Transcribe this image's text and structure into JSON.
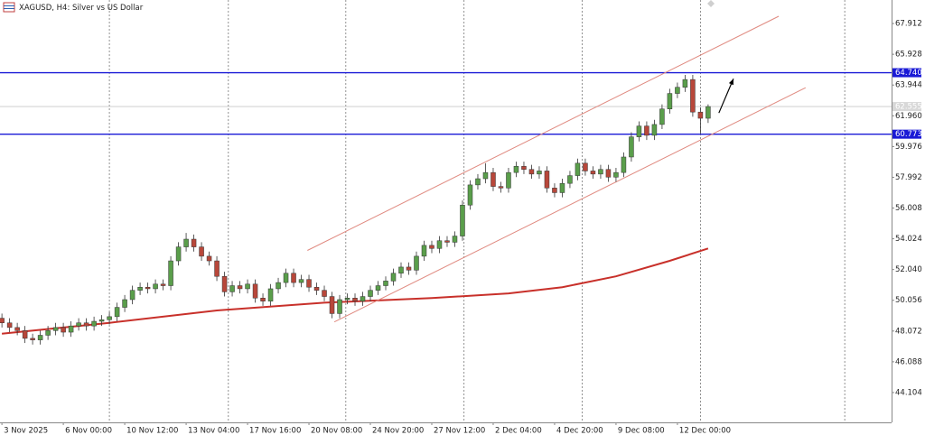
{
  "chart_data": {
    "type": "candlestick",
    "title": "XAGUSD, H4: Silver vs US Dollar",
    "x": [
      0,
      1,
      2,
      3,
      4,
      5,
      6,
      7,
      8,
      9,
      10,
      11,
      12,
      13,
      14,
      15,
      16,
      17,
      18,
      19,
      20,
      21,
      22,
      23,
      24,
      25,
      26,
      27,
      28,
      29,
      30,
      31,
      32,
      33,
      34,
      35,
      36,
      37,
      38,
      39,
      40,
      41,
      42,
      43,
      44,
      45,
      46,
      47,
      48,
      49,
      50,
      51,
      52,
      53,
      54,
      55,
      56,
      57,
      58,
      59,
      60,
      61,
      62,
      63,
      64,
      65,
      66,
      67,
      68,
      69,
      70,
      71,
      72,
      73,
      74,
      75,
      76,
      77,
      78,
      79,
      80,
      81,
      82,
      83,
      84,
      85,
      86,
      87,
      88,
      89,
      90,
      91,
      92
    ],
    "open": [
      48.9,
      48.6,
      48.3,
      48.1,
      47.6,
      47.5,
      47.8,
      48.1,
      48.3,
      48.0,
      48.4,
      48.6,
      48.4,
      48.7,
      48.8,
      49.0,
      49.6,
      50.1,
      50.7,
      50.9,
      50.8,
      51.1,
      51.0,
      52.6,
      53.5,
      54.0,
      53.5,
      52.9,
      52.6,
      51.6,
      50.6,
      51.0,
      50.8,
      51.1,
      50.2,
      50.0,
      50.8,
      51.2,
      51.8,
      51.2,
      51.4,
      50.9,
      50.7,
      50.3,
      49.2,
      50.1,
      50.2,
      50.0,
      50.3,
      50.7,
      51.0,
      51.3,
      51.8,
      52.2,
      52.0,
      52.9,
      53.6,
      53.4,
      53.9,
      53.8,
      54.2,
      56.2,
      57.5,
      57.9,
      58.3,
      57.4,
      57.3,
      58.3,
      58.7,
      58.5,
      58.2,
      58.4,
      57.3,
      57.0,
      57.6,
      58.1,
      58.9,
      58.4,
      58.2,
      58.5,
      58.0,
      58.3,
      59.3,
      60.6,
      61.3,
      60.7,
      61.4,
      62.4,
      63.4,
      63.8,
      64.3,
      62.2,
      61.8
    ],
    "high": [
      49.2,
      48.9,
      48.6,
      48.4,
      47.9,
      48.1,
      48.4,
      48.6,
      48.6,
      48.7,
      48.9,
      48.9,
      49.0,
      49.1,
      49.3,
      49.9,
      50.4,
      51.0,
      51.2,
      51.2,
      51.4,
      51.4,
      52.9,
      53.8,
      54.4,
      54.3,
      53.8,
      53.2,
      52.9,
      51.9,
      51.3,
      51.3,
      51.4,
      51.4,
      50.5,
      51.1,
      51.5,
      52.1,
      52.1,
      51.7,
      51.7,
      51.2,
      51.0,
      50.6,
      50.4,
      50.5,
      50.5,
      50.6,
      51.0,
      51.3,
      51.6,
      52.1,
      52.5,
      52.5,
      53.2,
      53.9,
      53.9,
      54.2,
      54.2,
      54.5,
      56.5,
      57.8,
      58.2,
      58.9,
      58.6,
      57.7,
      58.6,
      59.0,
      59.0,
      58.8,
      58.7,
      58.7,
      57.6,
      57.9,
      58.4,
      59.2,
      59.2,
      58.7,
      58.8,
      58.8,
      58.6,
      59.6,
      60.9,
      61.6,
      61.6,
      61.7,
      62.7,
      63.7,
      64.1,
      64.6,
      64.6,
      62.5,
      62.7
    ],
    "low": [
      48.3,
      48.0,
      47.8,
      47.3,
      47.2,
      47.2,
      47.5,
      47.8,
      47.7,
      47.7,
      48.1,
      48.1,
      48.1,
      48.4,
      48.5,
      48.7,
      49.3,
      49.8,
      50.4,
      50.5,
      50.5,
      50.7,
      50.7,
      52.3,
      53.2,
      53.2,
      52.6,
      52.3,
      51.3,
      50.3,
      50.3,
      50.5,
      50.5,
      49.9,
      49.7,
      49.7,
      50.5,
      50.9,
      50.9,
      50.9,
      50.6,
      50.4,
      50.0,
      48.9,
      48.9,
      49.8,
      49.7,
      49.7,
      50.0,
      50.4,
      50.7,
      51.0,
      51.5,
      51.7,
      51.7,
      52.6,
      53.1,
      53.1,
      53.5,
      53.5,
      53.9,
      55.9,
      57.2,
      57.6,
      57.1,
      57.0,
      57.0,
      58.0,
      58.2,
      57.9,
      57.9,
      57.0,
      56.7,
      56.7,
      57.3,
      57.8,
      58.1,
      57.9,
      57.9,
      57.7,
      57.7,
      58.0,
      59.0,
      60.3,
      60.4,
      60.4,
      61.1,
      62.1,
      63.1,
      63.5,
      61.9,
      60.8,
      61.5
    ],
    "close": [
      48.6,
      48.3,
      48.1,
      47.6,
      47.5,
      47.8,
      48.1,
      48.3,
      48.0,
      48.4,
      48.6,
      48.4,
      48.7,
      48.8,
      49.0,
      49.6,
      50.1,
      50.7,
      50.9,
      50.8,
      51.1,
      51.0,
      52.6,
      53.5,
      54.0,
      53.5,
      52.9,
      52.6,
      51.6,
      50.6,
      51.0,
      50.8,
      51.1,
      50.2,
      50.0,
      50.8,
      51.2,
      51.8,
      51.2,
      51.4,
      50.9,
      50.7,
      50.3,
      49.2,
      50.1,
      50.2,
      50.0,
      50.3,
      50.7,
      51.0,
      51.3,
      51.8,
      52.2,
      52.0,
      52.9,
      53.6,
      53.4,
      53.9,
      53.8,
      54.2,
      56.2,
      57.5,
      57.9,
      58.3,
      57.4,
      57.3,
      58.3,
      58.7,
      58.5,
      58.2,
      58.4,
      57.3,
      57.0,
      57.6,
      58.1,
      58.9,
      58.4,
      58.2,
      58.5,
      58.0,
      58.3,
      59.3,
      60.6,
      61.3,
      60.7,
      61.4,
      62.4,
      63.4,
      63.8,
      64.3,
      62.2,
      61.8,
      62.555
    ],
    "up_color": "#5a9e4b",
    "down_color": "#b8473a",
    "ma": {
      "x": [
        0,
        14,
        28,
        42,
        56,
        66,
        73,
        80,
        87,
        92
      ],
      "values": [
        47.9,
        48.6,
        49.4,
        49.9,
        50.2,
        50.5,
        50.9,
        51.6,
        52.6,
        53.4
      ],
      "color": "#c8302a"
    },
    "channel": {
      "color": "#e08a80",
      "lines": [
        {
          "x": [
            39.8,
            101.2
          ],
          "values": [
            53.27,
            68.38
          ]
        },
        {
          "x": [
            43.3,
            104.7
          ],
          "values": [
            48.66,
            63.77
          ]
        }
      ]
    },
    "arrow": {
      "x": [
        93.4,
        95.3
      ],
      "values": [
        62.14,
        64.35
      ],
      "color": "#000000"
    },
    "hlines": {
      "values": [
        64.74,
        60.773
      ],
      "value_labels": [
        "64.740",
        "60.773"
      ],
      "color": "#1a1ad6"
    },
    "last_price": 62.555,
    "xlim": [
      -0.25,
      115.9
    ],
    "ylim": [
      42.18,
      69.43
    ],
    "yticks": [
      {
        "value": 67.912,
        "label": "67.912"
      },
      65.928,
      63.944,
      {
        "value": 61.96,
        "label": "61.960"
      },
      59.976,
      57.992,
      56.008,
      54.024,
      {
        "value": 52.04,
        "label": "52.040"
      },
      50.056,
      48.072,
      46.088,
      44.104
    ],
    "xticks": [
      {
        "value": 0,
        "label": "3 Nov 2025"
      },
      {
        "value": 8,
        "label": "6 Nov 00:00"
      },
      {
        "value": 16,
        "label": "10 Nov 12:00"
      },
      {
        "value": 24,
        "label": "13 Nov 04:00"
      },
      {
        "value": 32,
        "label": "17 Nov 16:00"
      },
      {
        "value": 40,
        "label": "20 Nov 08:00"
      },
      {
        "value": 48,
        "label": "24 Nov 20:00"
      },
      {
        "value": 56,
        "label": "27 Nov 12:00"
      },
      {
        "value": 64,
        "label": "2 Dec 04:00"
      },
      {
        "value": 72,
        "label": "4 Dec 20:00"
      },
      {
        "value": 80,
        "label": "9 Dec 08:00"
      },
      {
        "value": 88,
        "label": "12 Dec 00:00"
      }
    ],
    "xgrid": [
      14,
      29.5,
      44.8,
      60.2,
      75.6,
      91,
      109.8
    ]
  }
}
